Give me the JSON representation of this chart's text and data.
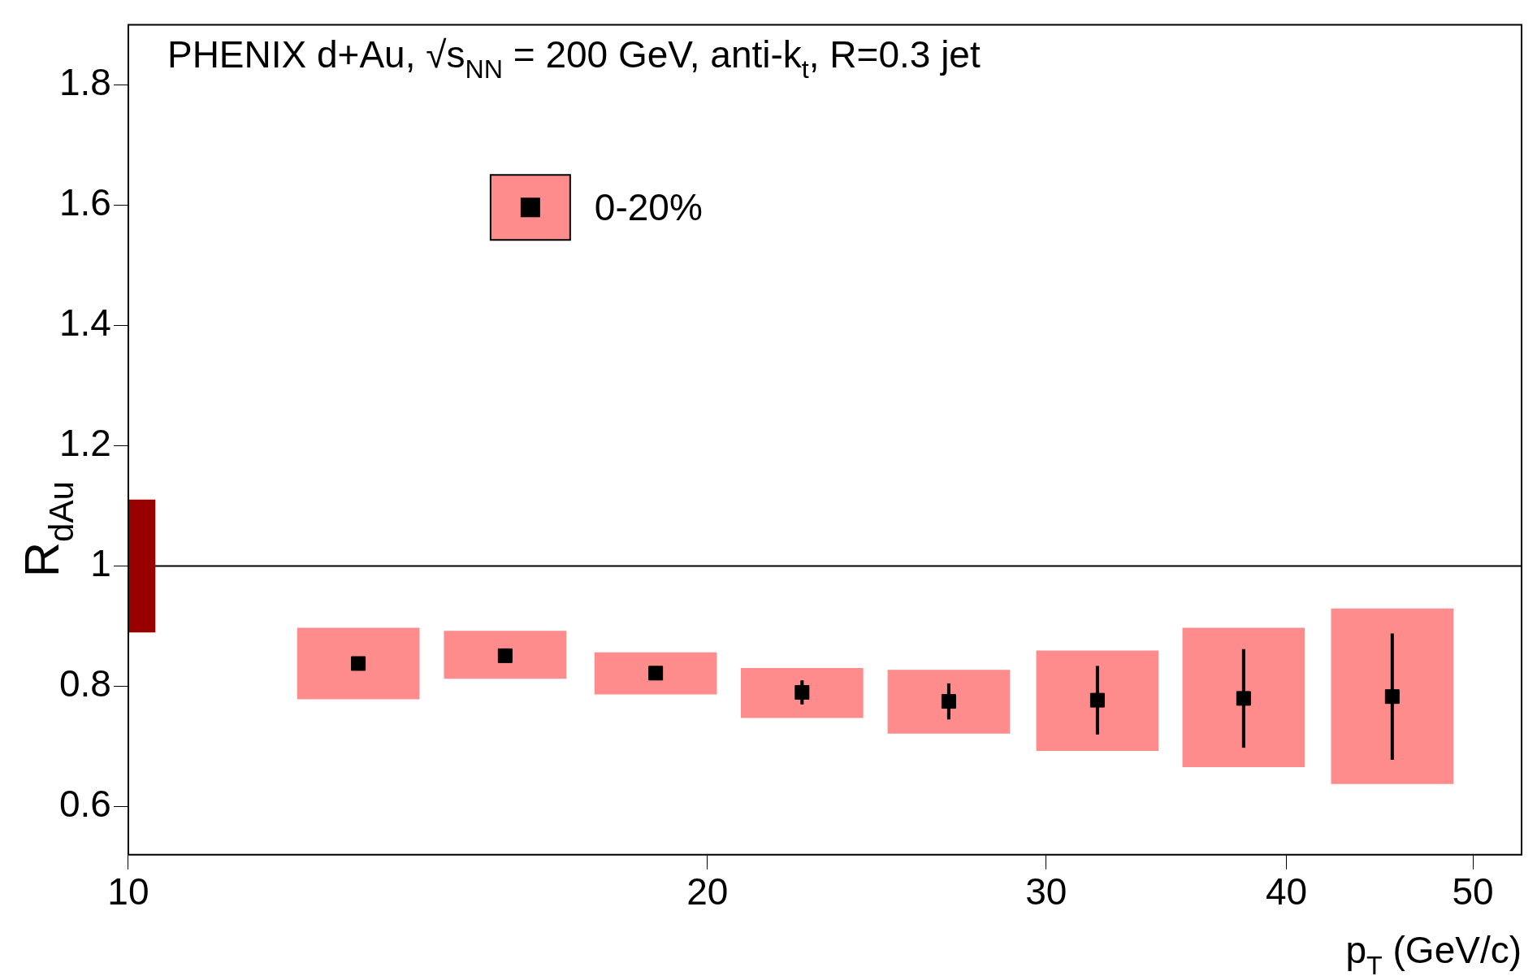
{
  "chart_data": {
    "type": "scatter",
    "title": "PHENIX d+Au, √s$_{NN}$ = 200 GeV, anti-k$_{t}$, R=0.3 jet",
    "xlabel": "p$_{T}$ (GeV/c)",
    "ylabel": "R$_{dAu}$",
    "log": "x",
    "xlim": [
      10,
      53
    ],
    "xticks": [
      10,
      20,
      30,
      40,
      50
    ],
    "ylim": [
      0.52,
      1.9
    ],
    "yticks": [
      0.6,
      0.8,
      1,
      1.2,
      1.4,
      1.6,
      1.8
    ],
    "grid": false,
    "legend": "top left",
    "marker": "square",
    "x": [
      13.17,
      15.7,
      18.8,
      22.4,
      26.7,
      31.9,
      38.0,
      45.4
    ],
    "series": [
      {
        "type": "bar",
        "color": "#ff8c8c",
        "base": [
          0.779,
          0.813,
          0.787,
          0.748,
          0.722,
          0.693,
          0.666,
          0.638
        ],
        "values": [
          0.118,
          0.079,
          0.069,
          0.082,
          0.105,
          0.166,
          0.231,
          0.291
        ]
      },
      {
        "type": "bar",
        "color": "#990000",
        "x": [
          10
        ],
        "base": [
          0.89
        ],
        "values": [
          0.22
        ]
      },
      {
        "name": "0-20%",
        "color": "#000000",
        "values": [
          0.838,
          0.851,
          0.822,
          0.79,
          0.775,
          0.777,
          0.78,
          0.783
        ],
        "errors": [
          null,
          null,
          null,
          0.02,
          0.03,
          0.057,
          0.082,
          0.105
        ]
      }
    ],
    "ref_lines": [
      {
        "axis": "y",
        "value": 1,
        "color": "#000000"
      }
    ]
  }
}
